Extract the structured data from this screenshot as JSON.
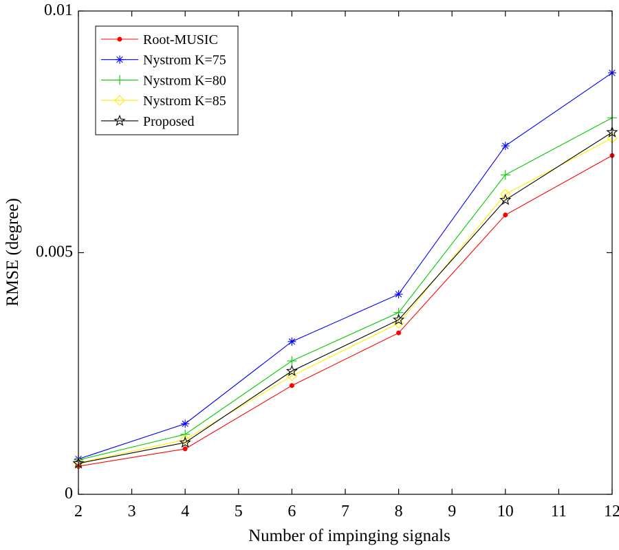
{
  "chart_data": {
    "type": "line",
    "title": "",
    "xlabel": "Number of impinging signals",
    "ylabel": "RMSE (degree)",
    "xlim": [
      2,
      12
    ],
    "ylim": [
      0,
      0.01
    ],
    "xticks": [
      2,
      3,
      4,
      5,
      6,
      7,
      8,
      9,
      10,
      11,
      12
    ],
    "xtick_labels": [
      "2",
      "3",
      "4",
      "5",
      "6",
      "7",
      "8",
      "9",
      "10",
      "11",
      "12"
    ],
    "yticks": [
      0,
      0.005,
      0.01
    ],
    "ytick_labels": [
      "0",
      "0.005",
      "0.01"
    ],
    "grid": false,
    "legend_position": "top-left",
    "x": [
      2,
      4,
      6,
      8,
      10,
      12
    ],
    "series": [
      {
        "name": "Root-MUSIC",
        "color": "#ff0000",
        "marker": "dot",
        "values": [
          0.00058,
          0.00094,
          0.00225,
          0.00334,
          0.00578,
          0.00701
        ]
      },
      {
        "name": "Nystrom K=75",
        "color": "#0000ff",
        "marker": "asterisk",
        "values": [
          0.00073,
          0.00146,
          0.00316,
          0.00414,
          0.00721,
          0.00872
        ]
      },
      {
        "name": "Nystrom K=80",
        "color": "#00cc00",
        "marker": "plus",
        "values": [
          0.00071,
          0.00124,
          0.00276,
          0.00376,
          0.00661,
          0.00779
        ]
      },
      {
        "name": "Nystrom K=85",
        "color": "#ffee00",
        "marker": "diamond",
        "values": [
          0.00065,
          0.00113,
          0.00245,
          0.00354,
          0.00621,
          0.00737
        ]
      },
      {
        "name": "Proposed",
        "color": "#000000",
        "marker": "star",
        "values": [
          0.00064,
          0.00107,
          0.00255,
          0.00361,
          0.00609,
          0.00749
        ]
      }
    ]
  }
}
